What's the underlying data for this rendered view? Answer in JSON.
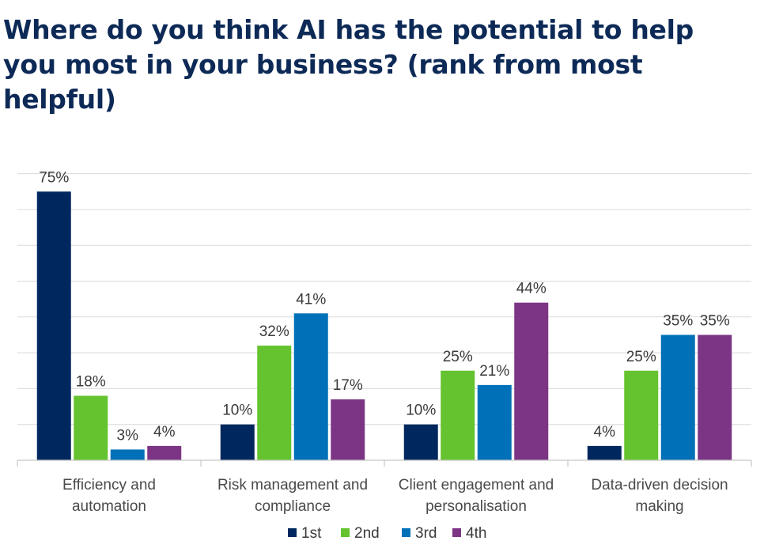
{
  "title": "Where do you think AI has the potential to help you most in your business? (rank from most helpful)",
  "chart_data": {
    "type": "bar",
    "title": "Where do you think AI has the potential to help you most in your business? (rank from most helpful)",
    "categories": [
      [
        "Efficiency and",
        "automation"
      ],
      [
        "Risk management and",
        "compliance"
      ],
      [
        "Client engagement and",
        "personalisation"
      ],
      [
        "Data-driven decision",
        "making"
      ]
    ],
    "series": [
      {
        "name": "1st",
        "color": "#00285f",
        "values": [
          75,
          10,
          10,
          4
        ]
      },
      {
        "name": "2nd",
        "color": "#64c32e",
        "values": [
          18,
          32,
          25,
          25
        ]
      },
      {
        "name": "3rd",
        "color": "#0070b8",
        "values": [
          3,
          41,
          21,
          35
        ]
      },
      {
        "name": "4th",
        "color": "#7b3584",
        "values": [
          4,
          17,
          44,
          35
        ]
      }
    ],
    "value_suffix": "%",
    "ylim": [
      0,
      80
    ],
    "grid": true,
    "legend": "bottom",
    "xlabel": "",
    "ylabel": ""
  }
}
